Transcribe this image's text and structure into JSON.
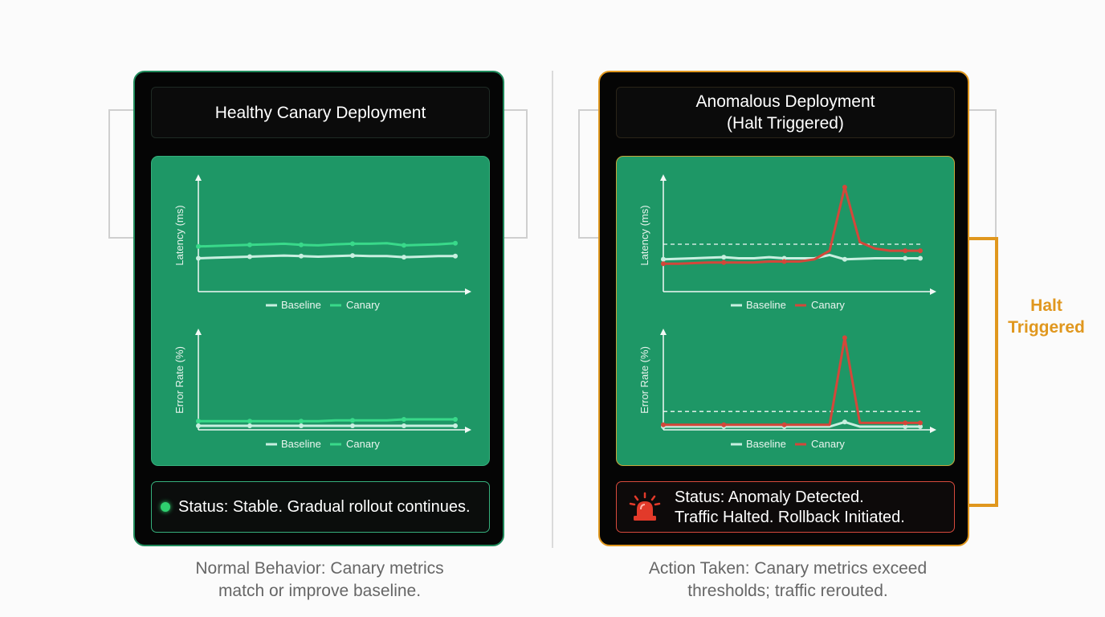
{
  "left_panel": {
    "title": "Healthy Canary Deployment",
    "latency_ylabel": "Latency (ms)",
    "error_ylabel": "Error Rate (%)",
    "legend_baseline": "Baseline",
    "legend_canary": "Canary",
    "status": "Status: Stable. Gradual rollout continues.",
    "caption_line1": "Normal Behavior: Canary metrics",
    "caption_line2": "match or improve baseline."
  },
  "right_panel": {
    "title_line1": "Anomalous Deployment",
    "title_line2": "(Halt Triggered)",
    "latency_ylabel": "Latency (ms)",
    "error_ylabel": "Error Rate (%)",
    "legend_baseline": "Baseline",
    "legend_canary": "Canary",
    "status_line1": "Status: Anomaly Detected.",
    "status_line2": "Traffic Halted. Rollback Initiated.",
    "caption_line1": "Action Taken: Canary metrics exceed",
    "caption_line2": "thresholds; traffic rerouted."
  },
  "halt_label_line1": "Halt",
  "halt_label_line2": "Triggered",
  "colors": {
    "healthy": "#1f8a5b",
    "chart_bg": "#1e9766",
    "baseline": "#c8efe0",
    "canary_healthy": "#39d98a",
    "canary_anomalous": "#d4473a",
    "halt": "#e0971e",
    "status_dot": "#2fd06f",
    "alarm": "#e23a2a"
  },
  "chart_data": [
    {
      "type": "line",
      "ylabel": "Latency (ms)",
      "x": [
        0,
        1,
        2,
        3,
        4,
        5,
        6,
        7,
        8,
        9,
        10,
        11,
        12,
        13,
        14,
        15
      ],
      "series": [
        {
          "name": "Baseline",
          "values": [
            28,
            28.5,
            29,
            29.5,
            30,
            30.5,
            30,
            29.5,
            30,
            30.5,
            30,
            30,
            29,
            29.5,
            30,
            30
          ]
        },
        {
          "name": "Canary",
          "values": [
            36,
            36.5,
            37,
            37.5,
            38,
            38.5,
            37.5,
            37,
            38,
            38.5,
            38.5,
            39,
            37,
            37.5,
            38,
            39
          ]
        }
      ]
    },
    {
      "type": "line",
      "ylabel": "Error Rate (%)",
      "x": [
        0,
        1,
        2,
        3,
        4,
        5,
        6,
        7,
        8,
        9,
        10,
        11,
        12,
        13,
        14,
        15
      ],
      "series": [
        {
          "name": "Baseline",
          "values": [
            0,
            0,
            0,
            0,
            0,
            0,
            0,
            0,
            0,
            0,
            0,
            0,
            0,
            0,
            0,
            0
          ]
        },
        {
          "name": "Canary",
          "values": [
            5,
            5,
            5,
            5,
            5,
            5,
            5,
            5,
            6,
            6,
            6,
            6,
            7,
            7,
            7,
            7
          ]
        }
      ]
    },
    {
      "type": "line",
      "ylabel": "Latency (ms)",
      "x": [
        0,
        1,
        2,
        3,
        4,
        5,
        6,
        7,
        8,
        9,
        10,
        11,
        12,
        13,
        14,
        15,
        16,
        17
      ],
      "threshold": 44,
      "series": [
        {
          "name": "Baseline",
          "values": [
            30,
            30.5,
            31,
            31.5,
            32,
            31,
            31,
            32,
            31,
            31,
            31,
            34,
            30,
            30.5,
            31,
            31,
            31,
            31
          ]
        },
        {
          "name": "Canary",
          "values": [
            26,
            26,
            26.5,
            27,
            27,
            27,
            27,
            28,
            28,
            28,
            30,
            38,
            97,
            46,
            40,
            38,
            38,
            38
          ]
        }
      ]
    },
    {
      "type": "line",
      "ylabel": "Error Rate (%)",
      "x": [
        0,
        1,
        2,
        3,
        4,
        5,
        6,
        7,
        8,
        9,
        10,
        11,
        12,
        13,
        14,
        15,
        16,
        17
      ],
      "threshold": 20,
      "series": [
        {
          "name": "Baseline",
          "values": [
            0,
            0,
            0,
            0,
            0,
            0,
            0,
            0,
            0,
            0,
            0,
            0,
            5,
            0,
            0,
            0,
            0,
            0
          ]
        },
        {
          "name": "Canary",
          "values": [
            2,
            2,
            2,
            2,
            2,
            2,
            2,
            2,
            2,
            2,
            2,
            2,
            97,
            4,
            4,
            4,
            4,
            4
          ]
        }
      ]
    }
  ]
}
